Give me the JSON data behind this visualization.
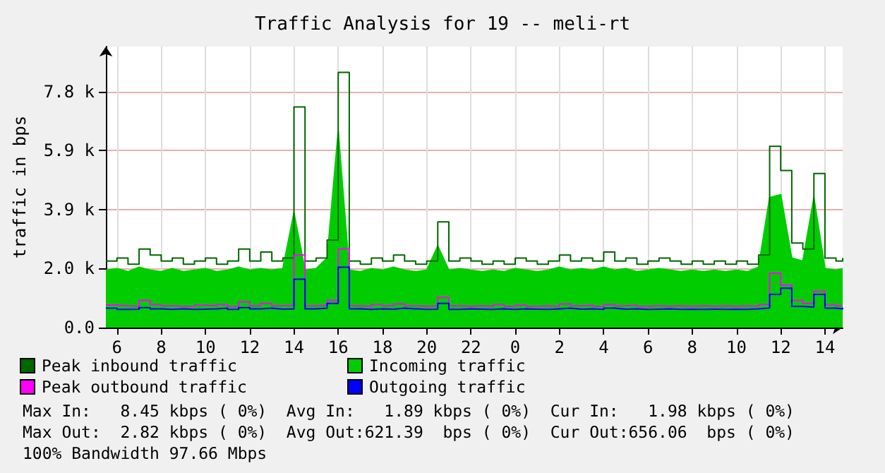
{
  "chart_data": {
    "type": "step",
    "title": "Traffic Analysis for 19 -- meli-rt",
    "ylabel": "traffic in bps",
    "x": [
      "--01-01T05:30",
      "--01-01T06:00",
      "--01-01T06:30",
      "--01-01T07:00",
      "--01-01T07:30",
      "--01-01T08:00",
      "--01-01T08:30",
      "--01-01T09:00",
      "--01-01T09:30",
      "--01-01T10:00",
      "--01-01T10:30",
      "--01-01T11:00",
      "--01-01T11:30",
      "--01-01T12:00",
      "--01-01T12:30",
      "--01-01T13:00",
      "--01-01T13:30",
      "--01-01T14:00",
      "--01-01T14:30",
      "--01-01T15:00",
      "--01-01T15:30",
      "--01-01T16:00",
      "--01-01T16:30",
      "--01-01T17:00",
      "--01-01T17:30",
      "--01-01T18:00",
      "--01-01T18:30",
      "--01-01T19:00",
      "--01-01T19:30",
      "--01-01T20:00",
      "--01-01T20:30",
      "--01-01T21:00",
      "--01-01T21:30",
      "--01-01T22:00",
      "--01-01T22:30",
      "--01-01T23:00",
      "--01-01T23:30",
      "--01-02T00:00",
      "--01-02T00:30",
      "--01-02T01:00",
      "--01-02T01:30",
      "--01-02T02:00",
      "--01-02T02:30",
      "--01-02T03:00",
      "--01-02T03:30",
      "--01-02T04:00",
      "--01-02T04:30",
      "--01-02T05:00",
      "--01-02T05:30",
      "--01-02T06:00",
      "--01-02T06:30",
      "--01-02T07:00",
      "--01-02T07:30",
      "--01-02T08:00",
      "--01-02T08:30",
      "--01-02T09:00",
      "--01-02T09:30",
      "--01-02T10:00",
      "--01-02T10:30",
      "--01-02T11:00",
      "--01-02T11:30",
      "--01-02T12:00",
      "--01-02T12:30",
      "--01-02T13:00",
      "--01-02T13:30",
      "--01-02T14:00",
      "--01-02T14:30",
      "--01-02T14:48"
    ],
    "series": [
      {
        "name": "Peak inbound traffic",
        "color": "#006600",
        "values": [
          2200,
          2300,
          2100,
          2600,
          2400,
          2200,
          2300,
          2100,
          2200,
          2300,
          2100,
          2200,
          2600,
          2200,
          2500,
          2200,
          2300,
          7300,
          2200,
          2300,
          2900,
          8450,
          2200,
          2100,
          2300,
          2200,
          2400,
          2200,
          2100,
          2200,
          3500,
          2200,
          2300,
          2200,
          2100,
          2200,
          2100,
          2300,
          2200,
          2100,
          2200,
          2400,
          2200,
          2300,
          2200,
          2500,
          2200,
          2300,
          2100,
          2200,
          2300,
          2200,
          2100,
          2200,
          2100,
          2200,
          2100,
          2200,
          2100,
          2400,
          6000,
          5200,
          2800,
          2600,
          5100,
          2300,
          2200,
          2300
        ]
      },
      {
        "name": "Incoming traffic",
        "type": "area",
        "color": "#00cc00",
        "values": [
          1900,
          1950,
          1850,
          2000,
          1900,
          1850,
          1950,
          1850,
          1900,
          1950,
          1850,
          1900,
          2000,
          1900,
          1950,
          1900,
          1950,
          3800,
          1900,
          1950,
          2300,
          6500,
          1900,
          1850,
          1950,
          1900,
          2000,
          1900,
          1850,
          1900,
          2700,
          1900,
          1950,
          1900,
          1850,
          1900,
          1850,
          1950,
          1900,
          1850,
          1900,
          2000,
          1900,
          1950,
          1900,
          2000,
          1900,
          1950,
          1850,
          1900,
          1950,
          1900,
          1850,
          1900,
          1850,
          1900,
          1850,
          1900,
          1850,
          2000,
          4300,
          4400,
          2300,
          2200,
          4300,
          1950,
          1900,
          1950
        ]
      },
      {
        "name": "Peak outbound traffic",
        "color": "#ff00ff",
        "values": [
          750,
          720,
          700,
          900,
          760,
          720,
          700,
          700,
          740,
          720,
          760,
          700,
          850,
          720,
          800,
          720,
          740,
          2400,
          720,
          740,
          900,
          2600,
          720,
          700,
          760,
          720,
          780,
          720,
          700,
          720,
          1000,
          720,
          700,
          720,
          700,
          760,
          700,
          740,
          700,
          720,
          700,
          780,
          720,
          740,
          700,
          760,
          720,
          740,
          700,
          720,
          700,
          720,
          700,
          720,
          700,
          720,
          700,
          720,
          700,
          760,
          1800,
          1400,
          900,
          800,
          1200,
          760,
          720,
          740
        ]
      },
      {
        "name": "Outgoing traffic",
        "color": "#0000ff",
        "values": [
          640,
          600,
          610,
          660,
          620,
          600,
          620,
          600,
          610,
          620,
          640,
          600,
          660,
          620,
          640,
          610,
          620,
          1600,
          620,
          640,
          800,
          2000,
          620,
          600,
          620,
          610,
          640,
          620,
          600,
          610,
          800,
          600,
          620,
          610,
          600,
          620,
          600,
          620,
          610,
          600,
          620,
          640,
          610,
          620,
          600,
          640,
          610,
          620,
          600,
          610,
          620,
          600,
          610,
          600,
          610,
          600,
          610,
          600,
          620,
          650,
          1100,
          1300,
          700,
          680,
          1100,
          640,
          620,
          660
        ]
      }
    ],
    "xlim": [
      "--01-01T05:30",
      "--01-02T14:48"
    ],
    "xticks": [
      {
        "value": "--01-01T06:00",
        "label": "6"
      },
      {
        "value": "--01-01T08:00",
        "label": "8"
      },
      {
        "value": "--01-01T10:00",
        "label": "10"
      },
      {
        "value": "--01-01T12:00",
        "label": "12"
      },
      {
        "value": "--01-01T14:00",
        "label": "14"
      },
      {
        "value": "--01-01T16:00",
        "label": "16"
      },
      {
        "value": "--01-01T18:00",
        "label": "18"
      },
      {
        "value": "--01-01T20:00",
        "label": "20"
      },
      {
        "value": "--01-01T22:00",
        "label": "22"
      },
      {
        "value": "--01-02T00:00",
        "label": "0"
      },
      {
        "value": "--01-02T02:00",
        "label": "2"
      },
      {
        "value": "--01-02T04:00",
        "label": "4"
      },
      {
        "value": "--01-02T06:00",
        "label": "6"
      },
      {
        "value": "--01-02T08:00",
        "label": "8"
      },
      {
        "value": "--01-02T10:00",
        "label": "10"
      },
      {
        "value": "--01-02T12:00",
        "label": "12"
      },
      {
        "value": "--01-02T14:00",
        "label": "14"
      }
    ],
    "ylim": [
      0,
      9300
    ],
    "yticks": [
      {
        "value": 0,
        "label": "0.0"
      },
      {
        "value": 1953,
        "label": "2.0 k"
      },
      {
        "value": 3906,
        "label": "3.9 k"
      },
      {
        "value": 5859,
        "label": "5.9 k"
      },
      {
        "value": 7812,
        "label": "7.8 k"
      }
    ],
    "grid": true,
    "legend": "bottom",
    "marker": "none",
    "line_style": "solid",
    "annotations": [
      "Max In:   8.45 kbps ( 0%)  Avg In:   1.89 kbps ( 0%)  Cur In:   1.98 kbps ( 0%)",
      "Max Out:  2.82 kbps ( 0%)  Avg Out:621.39  bps ( 0%)  Cur Out:656.06  bps ( 0%)",
      "100% Bandwidth 97.66 Mbps"
    ]
  }
}
